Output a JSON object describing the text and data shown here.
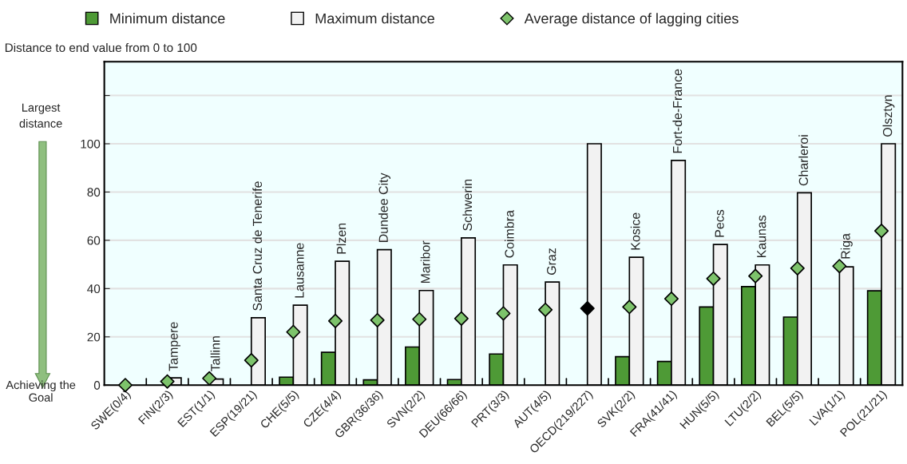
{
  "chart_data": {
    "type": "bar",
    "ylabel": "Distance to end value from 0 to 100",
    "categories": [
      "SWE(0/4)",
      "FIN(2/3)",
      "EST(1/1)",
      "ESP(19/21)",
      "CHE(5/5)",
      "CZE(4/4)",
      "GBR(36/36)",
      "SVN(2/2)",
      "DEU(66/66)",
      "PRT(3/3)",
      "AUT(4/5)",
      "OECD(219/227)",
      "SVK(2/2)",
      "FRA(41/41)",
      "HUN(5/5)",
      "LTU(2/2)",
      "BEL(5/5)",
      "LVA(1/1)",
      "POL(21/21)"
    ],
    "series": [
      {
        "name": "Minimum distance",
        "color": "#4e9a36",
        "values": [
          null,
          null,
          null,
          null,
          3.3,
          13.6,
          2.2,
          15.8,
          2.3,
          12.9,
          null,
          null,
          11.8,
          9.8,
          32.4,
          40.8,
          28.2,
          null,
          39.1
        ]
      },
      {
        "name": "Maximum distance",
        "color": "#f2f2f2",
        "values": [
          null,
          3.0,
          2.5,
          27.9,
          33.1,
          51.3,
          56.1,
          39.2,
          61.0,
          49.8,
          42.7,
          100,
          53.0,
          93.1,
          58.3,
          49.8,
          79.7,
          49.0,
          100
        ]
      },
      {
        "name": "Average distance of lagging cities",
        "type": "scatter",
        "color": "#7dc36b",
        "colors": [
          "#7dc36b",
          "#7dc36b",
          "#7dc36b",
          "#7dc36b",
          "#7dc36b",
          "#7dc36b",
          "#7dc36b",
          "#7dc36b",
          "#7dc36b",
          "#7dc36b",
          "#7dc36b",
          "#000000",
          "#7dc36b",
          "#7dc36b",
          "#7dc36b",
          "#7dc36b",
          "#7dc36b",
          "#7dc36b",
          "#7dc36b"
        ],
        "marker": "diamond",
        "values": [
          0,
          1.5,
          2.8,
          10.3,
          22.0,
          26.6,
          26.9,
          27.3,
          27.6,
          29.7,
          31.2,
          31.8,
          32.4,
          35.8,
          44.1,
          45.2,
          48.4,
          49.3,
          63.9
        ]
      }
    ],
    "ylim": [
      0,
      134
    ],
    "yticks": [
      0,
      20,
      40,
      60,
      80,
      100,
      {
        "value": 120,
        "label": null
      }
    ],
    "grid": "y",
    "legend": "top",
    "annotations": [
      {
        "text": "Tampere",
        "x": "FIN(2/3)",
        "y": 3.0
      },
      {
        "text": "Tallinn",
        "x": "EST(1/1)",
        "y": 2.8
      },
      {
        "text": "Santa Cruz de Tenerife",
        "x": "ESP(19/21)",
        "y": 27.9
      },
      {
        "text": "Lausanne",
        "x": "CHE(5/5)",
        "y": 33.1
      },
      {
        "text": "Plzen",
        "x": "CZE(4/4)",
        "y": 51.3
      },
      {
        "text": "Dundee City",
        "x": "GBR(36/36)",
        "y": 56.1
      },
      {
        "text": "Maribor",
        "x": "SVN(2/2)",
        "y": 39.2
      },
      {
        "text": "Schwerin",
        "x": "DEU(66/66)",
        "y": 61.0
      },
      {
        "text": "Coimbra",
        "x": "PRT(3/3)",
        "y": 49.8
      },
      {
        "text": "Graz",
        "x": "AUT(4/5)",
        "y": 42.7
      },
      {
        "text": "Kosice",
        "x": "SVK(2/2)",
        "y": 53.0
      },
      {
        "text": "Fort-de-France",
        "x": "FRA(41/41)",
        "y": 93.1
      },
      {
        "text": "Pecs",
        "x": "HUN(5/5)",
        "y": 58.3
      },
      {
        "text": "Kaunas",
        "x": "LTU(2/2)",
        "y": 49.8
      },
      {
        "text": "Charleroi",
        "x": "BEL(5/5)",
        "y": 79.7
      },
      {
        "text": "Riga",
        "x": "LVA(1/1)",
        "y": 49.3
      },
      {
        "text": "Olsztyn",
        "x": "POL(21/21)",
        "y": 100
      },
      "Largest distance",
      "Achieving the Goal"
    ]
  }
}
